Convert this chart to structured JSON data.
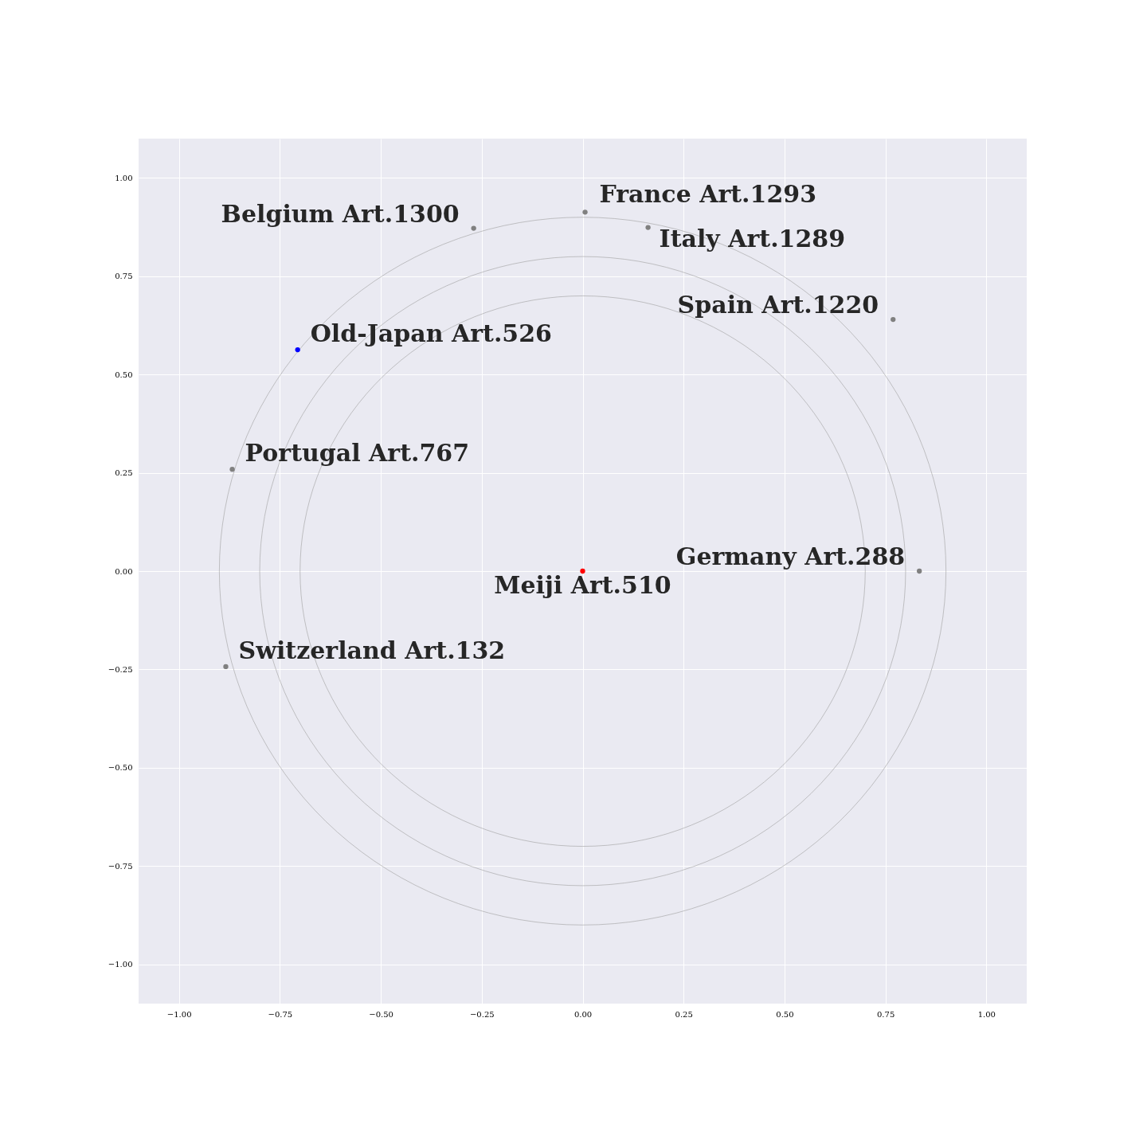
{
  "chart_data": {
    "type": "scatter",
    "xlim": [
      -1.1,
      1.1
    ],
    "ylim": [
      -1.1,
      1.1
    ],
    "xticks": [
      {
        "value": -1,
        "label": "−1.00"
      },
      {
        "value": -0.75,
        "label": "−0.75"
      },
      {
        "value": -0.5,
        "label": "−0.50"
      },
      {
        "value": -0.25,
        "label": "−0.25"
      },
      {
        "value": 0,
        "label": "0.00"
      },
      {
        "value": 0.25,
        "label": "0.25"
      },
      {
        "value": 0.5,
        "label": "0.50"
      },
      {
        "value": 0.75,
        "label": "0.75"
      },
      {
        "value": 1,
        "label": "1.00"
      }
    ],
    "yticks": [
      {
        "value": -1,
        "label": "−1.00"
      },
      {
        "value": -0.75,
        "label": "−0.75"
      },
      {
        "value": -0.5,
        "label": "−0.50"
      },
      {
        "value": -0.25,
        "label": "−0.25"
      },
      {
        "value": 0,
        "label": "0.00"
      },
      {
        "value": 0.25,
        "label": "0.25"
      },
      {
        "value": 0.5,
        "label": "0.50"
      },
      {
        "value": 0.75,
        "label": "0.75"
      },
      {
        "value": 1,
        "label": "1.00"
      }
    ],
    "grid": true,
    "marker": "circle",
    "series": [
      {
        "x": [
          0.006,
          -0.27,
          0.162,
          0.769,
          -0.706,
          -0.868,
          0.834,
          0,
          -0.884
        ],
        "values": [
          0.913,
          0.872,
          0.874,
          0.64,
          0.563,
          0.259,
          0,
          0,
          -0.243
        ],
        "colors": [
          "#808080",
          "#808080",
          "#808080",
          "#808080",
          "#0000ff",
          "#808080",
          "#808080",
          "#ff0000",
          "#808080"
        ]
      }
    ],
    "annotations": [
      {
        "text": "France Art.1293",
        "x": 0.006,
        "y": 0.913
      },
      {
        "text": "Belgium Art.1300",
        "x": -0.27,
        "y": 0.872
      },
      {
        "text": "Italy Art.1289",
        "x": 0.162,
        "y": 0.874
      },
      {
        "text": "Spain Art.1220",
        "x": 0.769,
        "y": 0.64
      },
      {
        "text": "Old-Japan Art.526",
        "x": -0.706,
        "y": 0.563
      },
      {
        "text": "Portugal Art.767",
        "x": -0.868,
        "y": 0.259
      },
      {
        "text": "Germany Art.288",
        "x": 0.834,
        "y": 0
      },
      {
        "text": "Meiji Art.510",
        "x": 0,
        "y": 0
      },
      {
        "text": "Switzerland Art.132",
        "x": -0.884,
        "y": -0.243
      }
    ]
  }
}
